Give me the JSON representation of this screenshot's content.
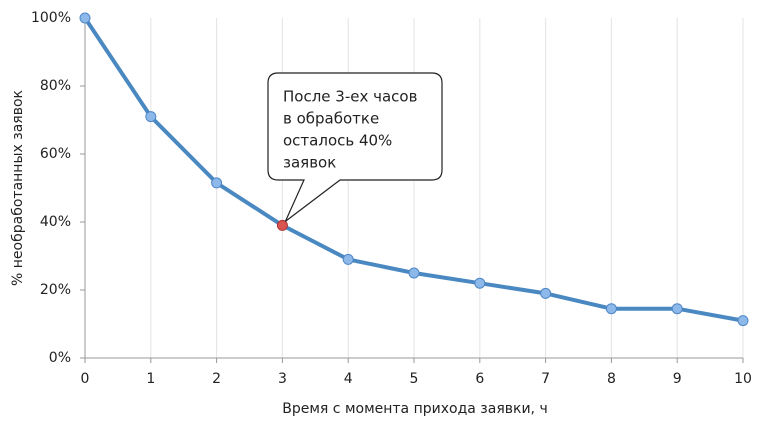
{
  "chart_data": {
    "type": "line",
    "x_label": "Время с момента прихода заявки, ч",
    "y_label": "% необработанных заявок",
    "x": [
      0,
      1,
      2,
      3,
      4,
      5,
      6,
      7,
      8,
      9,
      10
    ],
    "series": [
      {
        "color": "#4a88c2",
        "values": [
          100,
          71,
          51.5,
          39,
          29,
          25,
          22,
          19,
          14.5,
          14.5,
          11
        ]
      }
    ],
    "marker_color": "#8cb8ea",
    "highlight_index": 3,
    "highlight_color": "#d9534f",
    "xlim": [
      0,
      10
    ],
    "xticks": [
      0,
      1,
      2,
      3,
      4,
      5,
      6,
      7,
      8,
      9,
      10
    ],
    "ylim": [
      0,
      100
    ],
    "yticks": [
      {
        "value": 0,
        "label": "0%"
      },
      {
        "value": 20,
        "label": "20%"
      },
      {
        "value": 40,
        "label": "40%"
      },
      {
        "value": 60,
        "label": "60%"
      },
      {
        "value": 80,
        "label": "80%"
      },
      {
        "value": 100,
        "label": "100%"
      }
    ],
    "grid": "x",
    "annotation": {
      "lines": [
        "После 3-ех часов",
        "в обработке",
        "осталось 40%",
        "заявок"
      ]
    }
  }
}
